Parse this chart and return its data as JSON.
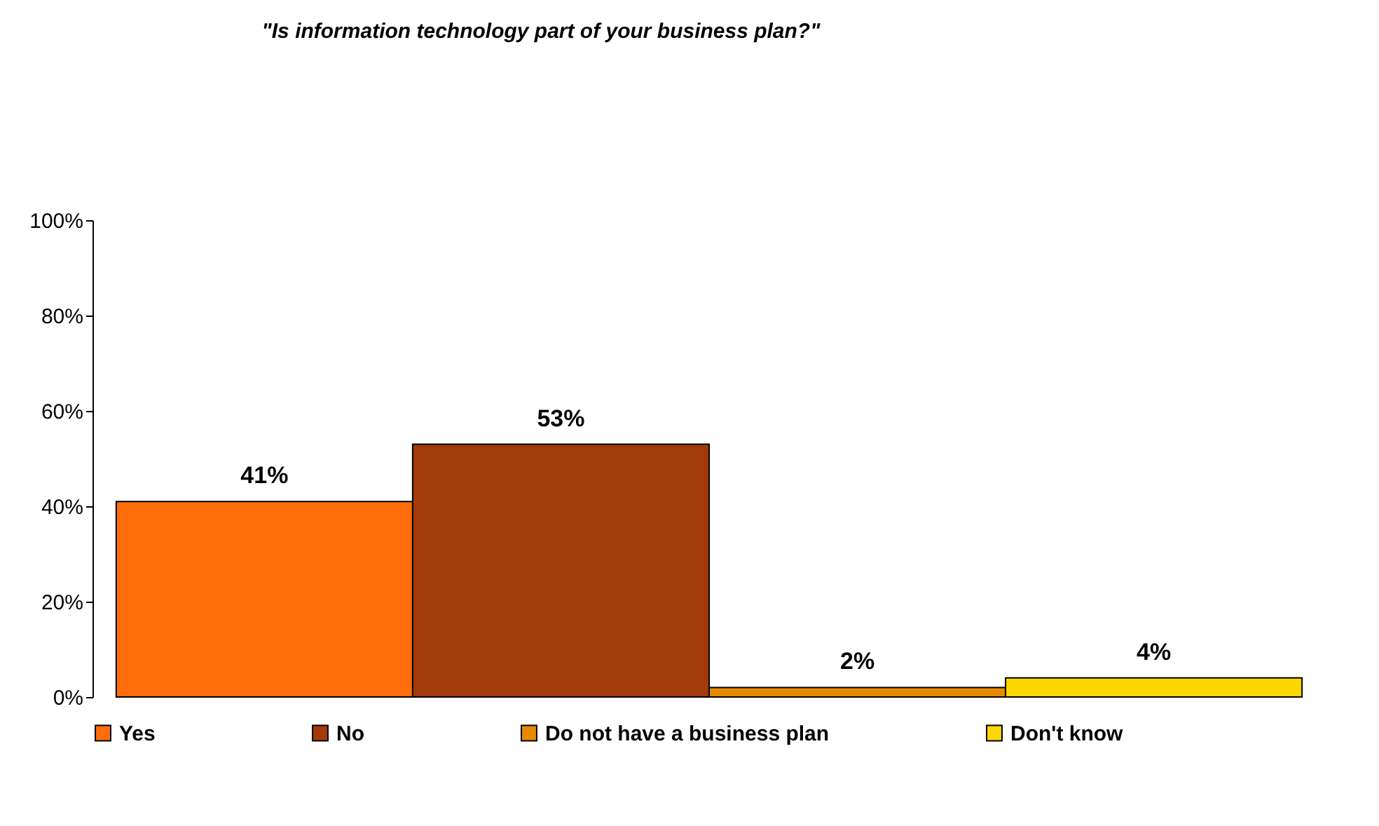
{
  "chart_data": {
    "type": "bar",
    "title": "\"Is information technology part of your business plan?\"",
    "categories": [
      null
    ],
    "series": [
      {
        "name": "Yes",
        "color": "#ff6e0a",
        "values": [
          41
        ],
        "value_labels": [
          "41%"
        ]
      },
      {
        "name": "No",
        "color": "#a33a0a",
        "values": [
          53
        ],
        "value_labels": [
          "53%"
        ]
      },
      {
        "name": "Do not have a business plan",
        "color": "#e88a00",
        "values": [
          2
        ],
        "value_labels": [
          "2%"
        ]
      },
      {
        "name": "Don't know",
        "color": "#ffd700",
        "values": [
          4
        ],
        "value_labels": [
          "4%"
        ]
      }
    ],
    "ylim": [
      0,
      100
    ],
    "yticks": [
      {
        "value": 0,
        "label": "0%"
      },
      {
        "value": 20,
        "label": "20%"
      },
      {
        "value": 40,
        "label": "40%"
      },
      {
        "value": 60,
        "label": "60%"
      },
      {
        "value": 80,
        "label": "80%"
      },
      {
        "value": 100,
        "label": "100%"
      }
    ],
    "grid": false,
    "legend": "bottom",
    "tick_labels": "y"
  }
}
